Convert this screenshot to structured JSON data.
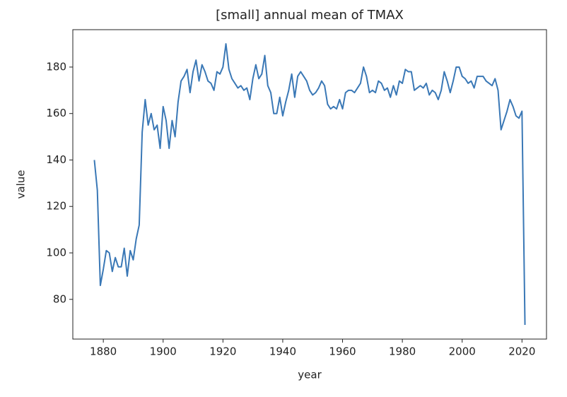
{
  "chart_data": {
    "type": "line",
    "title": "[small] annual mean of TMAX",
    "x_label": "year",
    "y_label": "value",
    "x": [
      1877,
      1878,
      1879,
      1880,
      1881,
      1882,
      1883,
      1884,
      1885,
      1886,
      1887,
      1888,
      1889,
      1890,
      1891,
      1892,
      1893,
      1894,
      1895,
      1896,
      1897,
      1898,
      1899,
      1900,
      1901,
      1902,
      1903,
      1904,
      1905,
      1906,
      1907,
      1908,
      1909,
      1910,
      1911,
      1912,
      1913,
      1914,
      1915,
      1916,
      1917,
      1918,
      1919,
      1920,
      1921,
      1922,
      1923,
      1924,
      1925,
      1926,
      1927,
      1928,
      1929,
      1930,
      1931,
      1932,
      1933,
      1934,
      1935,
      1936,
      1937,
      1938,
      1939,
      1940,
      1941,
      1942,
      1943,
      1944,
      1945,
      1946,
      1947,
      1948,
      1949,
      1950,
      1951,
      1952,
      1953,
      1954,
      1955,
      1956,
      1957,
      1958,
      1959,
      1960,
      1961,
      1962,
      1963,
      1964,
      1965,
      1966,
      1967,
      1968,
      1969,
      1970,
      1971,
      1972,
      1973,
      1974,
      1975,
      1976,
      1977,
      1978,
      1979,
      1980,
      1981,
      1982,
      1983,
      1984,
      1985,
      1986,
      1987,
      1988,
      1989,
      1990,
      1991,
      1992,
      1993,
      1994,
      1995,
      1996,
      1997,
      1998,
      1999,
      2000,
      2001,
      2002,
      2003,
      2004,
      2005,
      2006,
      2007,
      2008,
      2009,
      2010,
      2011,
      2012,
      2013,
      2014,
      2015,
      2016,
      2017,
      2018,
      2019,
      2020,
      2021
    ],
    "series": [
      {
        "color": "#3a78b6",
        "values": [
          140,
          127,
          86,
          93,
          101,
          100,
          92,
          98,
          94,
          94,
          102,
          90,
          101,
          97,
          106,
          112,
          152,
          166,
          155,
          160,
          153,
          155,
          145,
          163,
          157,
          145,
          157,
          150,
          165,
          174,
          176,
          179,
          169,
          178,
          183,
          174,
          181,
          178,
          174,
          173,
          170,
          178,
          177,
          180,
          190,
          179,
          175,
          173,
          171,
          172,
          170,
          171,
          166,
          175,
          181,
          175,
          177,
          185,
          172,
          169,
          160,
          160,
          167,
          159,
          165,
          170,
          177,
          167,
          176,
          178,
          176,
          174,
          170,
          168,
          169,
          171,
          174,
          172,
          164,
          162,
          163,
          162,
          166,
          162,
          169,
          170,
          170,
          169,
          171,
          173,
          180,
          176,
          169,
          170,
          169,
          174,
          173,
          170,
          171,
          167,
          172,
          168,
          174,
          173,
          179,
          178,
          178,
          170,
          171,
          172,
          171,
          173,
          168,
          170,
          169,
          166,
          170,
          178,
          174,
          169,
          174,
          180,
          180,
          176,
          175,
          173,
          174,
          171,
          176,
          176,
          176,
          174,
          173,
          172,
          175,
          170,
          153,
          157,
          161,
          166,
          163,
          159,
          158,
          161,
          69
        ]
      }
    ],
    "xlim": [
      1869.8,
      2028.2
    ],
    "xticks": [
      1880,
      1900,
      1920,
      1940,
      1960,
      1980,
      2000,
      2020
    ],
    "ylim": [
      62.9,
      196.1
    ],
    "yticks": [
      80,
      100,
      120,
      140,
      160,
      180
    ],
    "grid": false
  }
}
